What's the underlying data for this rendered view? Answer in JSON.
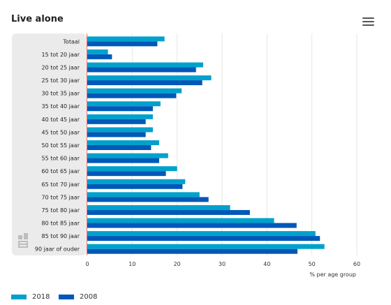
{
  "header": {
    "title": "Live alone",
    "menu_icon": "hamburger-menu-icon"
  },
  "chart_data": {
    "type": "bar",
    "orientation": "horizontal",
    "title": "Live alone",
    "xlabel": "% per age group",
    "xlim": [
      0,
      60
    ],
    "xticks": [
      0,
      10,
      20,
      30,
      40,
      50,
      60
    ],
    "grid": true,
    "legend_position": "bottom-left",
    "categories": [
      "Totaal",
      "15 tot 20 jaar",
      "20 tot 25 jaar",
      "25 tot 30 jaar",
      "30 tot 35 jaar",
      "35 tot 40 jaar",
      "40 tot 45 jaar",
      "45 tot 50 jaar",
      "50 tot 55 jaar",
      "55 tot 60 jaar",
      "60 tot 65 jaar",
      "65 tot 70 jaar",
      "70 tot 75 jaar",
      "75 tot 80 jaar",
      "80 tot 85 jaar",
      "85 tot 90 jaar",
      "90 jaar of ouder"
    ],
    "series": [
      {
        "name": "2018",
        "color": "#00a1cd",
        "values": [
          17.2,
          4.6,
          25.8,
          27.6,
          21.0,
          16.3,
          14.6,
          14.6,
          16.0,
          18.0,
          20.0,
          21.8,
          25.0,
          31.8,
          41.6,
          50.8,
          52.8
        ]
      },
      {
        "name": "2008",
        "color": "#0058b8",
        "values": [
          15.6,
          5.5,
          24.2,
          25.6,
          19.8,
          14.6,
          13.0,
          13.0,
          14.2,
          16.0,
          17.5,
          21.2,
          27.0,
          36.2,
          46.6,
          51.8,
          46.8
        ]
      }
    ]
  }
}
